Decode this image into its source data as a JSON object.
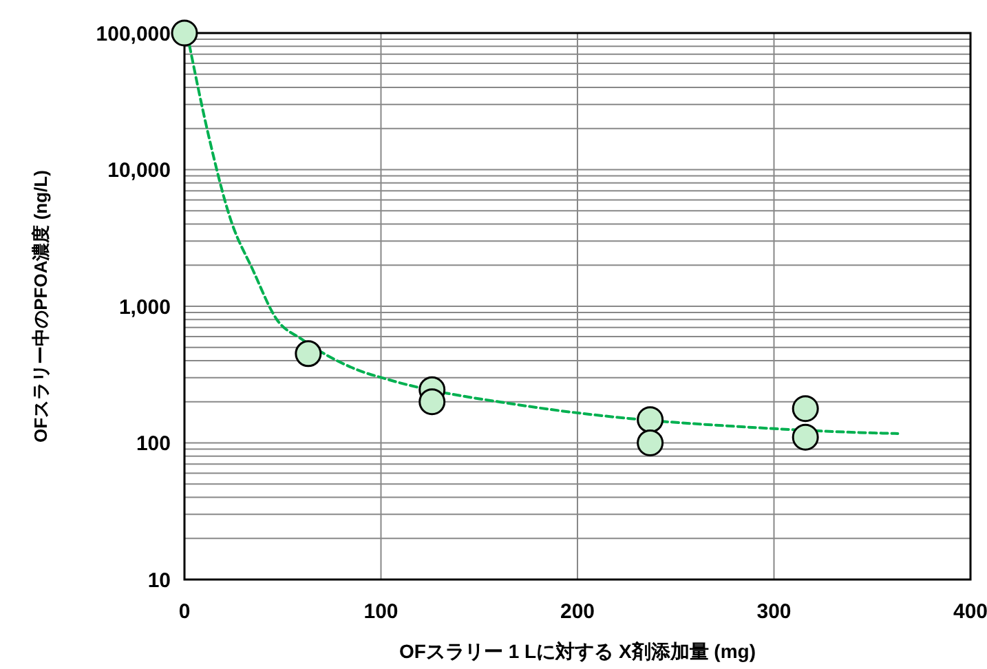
{
  "chart_data": {
    "type": "scatter",
    "xlabel": "OFスラリー 1 Lに対する X剤添加量 (mg)",
    "ylabel": "OFスラリー中のPFOA濃度 (ng/L)",
    "log": "y",
    "grid": true,
    "xlim": [
      0,
      400
    ],
    "xticks": [
      0,
      100,
      200,
      300,
      400
    ],
    "ylim": [
      10,
      100000
    ],
    "yticks": [
      {
        "value": 10,
        "label": "10"
      },
      {
        "value": 20,
        "label": null
      },
      {
        "value": 30,
        "label": null
      },
      {
        "value": 40,
        "label": null
      },
      {
        "value": 50,
        "label": null
      },
      {
        "value": 60,
        "label": null
      },
      {
        "value": 70,
        "label": null
      },
      {
        "value": 80,
        "label": null
      },
      {
        "value": 90,
        "label": null
      },
      {
        "value": 100,
        "label": "100"
      },
      {
        "value": 200,
        "label": null
      },
      {
        "value": 300,
        "label": null
      },
      {
        "value": 400,
        "label": null
      },
      {
        "value": 500,
        "label": null
      },
      {
        "value": 600,
        "label": null
      },
      {
        "value": 700,
        "label": null
      },
      {
        "value": 800,
        "label": null
      },
      {
        "value": 900,
        "label": null
      },
      {
        "value": 1000,
        "label": "1,000"
      },
      {
        "value": 2000,
        "label": null
      },
      {
        "value": 3000,
        "label": null
      },
      {
        "value": 4000,
        "label": null
      },
      {
        "value": 5000,
        "label": null
      },
      {
        "value": 6000,
        "label": null
      },
      {
        "value": 7000,
        "label": null
      },
      {
        "value": 8000,
        "label": null
      },
      {
        "value": 9000,
        "label": null
      },
      {
        "value": 10000,
        "label": "10,000"
      },
      {
        "value": 20000,
        "label": null
      },
      {
        "value": 30000,
        "label": null
      },
      {
        "value": 40000,
        "label": null
      },
      {
        "value": 50000,
        "label": null
      },
      {
        "value": 60000,
        "label": null
      },
      {
        "value": 70000,
        "label": null
      },
      {
        "value": 80000,
        "label": null
      },
      {
        "value": 90000,
        "label": null
      },
      {
        "value": 100000,
        "label": "100,000"
      }
    ],
    "series": [
      {
        "type": "line",
        "color": "#00b050",
        "line_style": "dashed",
        "marker": "none",
        "x": [
          1.4,
          12.5,
          23.6,
          34.7,
          47,
          59.6,
          87,
          104,
          170,
          226,
          281,
          337,
          363
        ],
        "values": [
          98000,
          17200,
          4270,
          1860,
          800,
          575,
          347,
          290,
          190,
          151,
          132,
          120,
          117
        ]
      },
      {
        "type": "scatter",
        "color": "#c6efce",
        "marker": "circle",
        "x": [
          0,
          63,
          126,
          126,
          237,
          237,
          316,
          316
        ],
        "values": [
          100000,
          450,
          245,
          200,
          148,
          100,
          178,
          110
        ]
      }
    ]
  }
}
